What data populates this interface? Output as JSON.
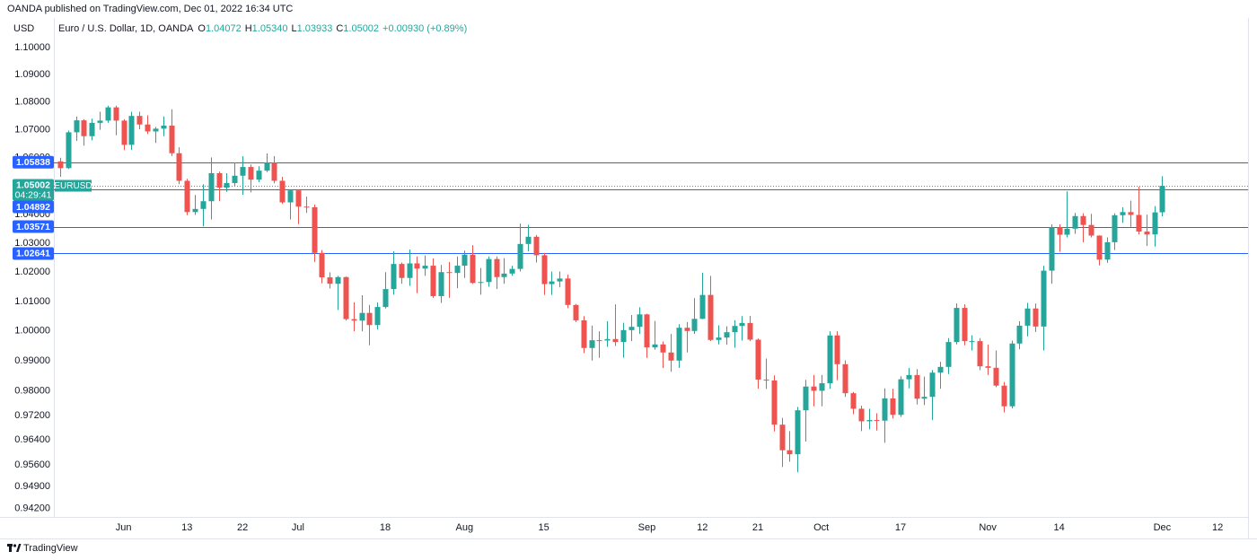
{
  "chart_data": {
    "type": "candlestick",
    "header": "OANDA published on TradingView.com, Dec 01, 2022 16:34 UTC",
    "currency": "USD",
    "legend": {
      "symbol": "Euro / U.S. Dollar, 1D, OANDA",
      "fields": [
        {
          "key": "O",
          "value": "1.04072"
        },
        {
          "key": "H",
          "value": "1.05340"
        },
        {
          "key": "L",
          "value": "1.03933"
        },
        {
          "key": "C",
          "value": "1.05002"
        }
      ],
      "change": "+0.00930 (+0.89%)"
    },
    "footer": "TradingView",
    "up_color": "#26a69a",
    "down_color": "#ef5350",
    "log_scale": true,
    "grid": false,
    "ylim": [
      0.9394,
      1.111
    ],
    "yticks": [
      {
        "value": 1.1,
        "label": "1.10000"
      },
      {
        "value": 1.09,
        "label": "1.09000"
      },
      {
        "value": 1.08,
        "label": "1.08000"
      },
      {
        "value": 1.07,
        "label": "1.07000"
      },
      {
        "value": 1.06,
        "label": "1.06000"
      },
      {
        "value": 1.04,
        "label": "1.04000"
      },
      {
        "value": 1.03,
        "label": "1.03000"
      },
      {
        "value": 1.02,
        "label": "1.02000"
      },
      {
        "value": 1.01,
        "label": "1.01000"
      },
      {
        "value": 1.0,
        "label": "1.00000"
      },
      {
        "value": 0.99,
        "label": "0.99000"
      },
      {
        "value": 0.98,
        "label": "0.98000"
      },
      {
        "value": 0.972,
        "label": "0.97200"
      },
      {
        "value": 0.964,
        "label": "0.96400"
      },
      {
        "value": 0.956,
        "label": "0.95600"
      },
      {
        "value": 0.949,
        "label": "0.94900"
      },
      {
        "value": 0.942,
        "label": "0.94200"
      }
    ],
    "xticks": [
      {
        "value": "2022-06-01",
        "label": "Jun"
      },
      {
        "value": "2022-06-13",
        "label": "13"
      },
      {
        "value": "2022-06-22",
        "label": "22"
      },
      {
        "value": "2022-07-01",
        "label": "Jul"
      },
      {
        "value": "2022-07-18",
        "label": "18"
      },
      {
        "value": "2022-08-01",
        "label": "Aug"
      },
      {
        "value": "2022-08-15",
        "label": "15"
      },
      {
        "value": "2022-09-01",
        "label": "Sep"
      },
      {
        "value": "2022-09-12",
        "label": "12"
      },
      {
        "value": "2022-09-21",
        "label": "21"
      },
      {
        "value": "2022-10-03",
        "label": "Oct"
      },
      {
        "value": "2022-10-17",
        "label": "17"
      },
      {
        "value": "2022-11-01",
        "label": "Nov"
      },
      {
        "value": "2022-11-14",
        "label": "14"
      },
      {
        "value": "2022-12-01",
        "label": "Dec"
      },
      {
        "value": "2022-12-12",
        "label": "12"
      }
    ],
    "hlines": [
      1.05838,
      1.04892,
      1.03571,
      1.02641
    ],
    "hline_color": "#2962ff",
    "last_price": 1.05002,
    "countdown": "04:29:41",
    "symbol_tag": "EURUSD",
    "categories": [
      "2022-05-20",
      "2022-05-23",
      "2022-05-24",
      "2022-05-25",
      "2022-05-26",
      "2022-05-27",
      "2022-05-30",
      "2022-05-31",
      "2022-06-01",
      "2022-06-02",
      "2022-06-03",
      "2022-06-06",
      "2022-06-07",
      "2022-06-08",
      "2022-06-09",
      "2022-06-10",
      "2022-06-13",
      "2022-06-14",
      "2022-06-15",
      "2022-06-16",
      "2022-06-17",
      "2022-06-20",
      "2022-06-21",
      "2022-06-22",
      "2022-06-23",
      "2022-06-24",
      "2022-06-27",
      "2022-06-28",
      "2022-06-29",
      "2022-06-30",
      "2022-07-01",
      "2022-07-04",
      "2022-07-05",
      "2022-07-06",
      "2022-07-07",
      "2022-07-08",
      "2022-07-11",
      "2022-07-12",
      "2022-07-13",
      "2022-07-14",
      "2022-07-15",
      "2022-07-18",
      "2022-07-19",
      "2022-07-20",
      "2022-07-21",
      "2022-07-22",
      "2022-07-25",
      "2022-07-26",
      "2022-07-27",
      "2022-07-28",
      "2022-07-29",
      "2022-08-01",
      "2022-08-02",
      "2022-08-03",
      "2022-08-04",
      "2022-08-05",
      "2022-08-08",
      "2022-08-09",
      "2022-08-10",
      "2022-08-11",
      "2022-08-12",
      "2022-08-15",
      "2022-08-16",
      "2022-08-17",
      "2022-08-18",
      "2022-08-19",
      "2022-08-22",
      "2022-08-23",
      "2022-08-24",
      "2022-08-25",
      "2022-08-26",
      "2022-08-29",
      "2022-08-30",
      "2022-08-31",
      "2022-09-01",
      "2022-09-02",
      "2022-09-05",
      "2022-09-06",
      "2022-09-07",
      "2022-09-08",
      "2022-09-09",
      "2022-09-12",
      "2022-09-13",
      "2022-09-14",
      "2022-09-15",
      "2022-09-16",
      "2022-09-19",
      "2022-09-20",
      "2022-09-21",
      "2022-09-22",
      "2022-09-23",
      "2022-09-26",
      "2022-09-27",
      "2022-09-28",
      "2022-09-29",
      "2022-09-30",
      "2022-10-03",
      "2022-10-04",
      "2022-10-05",
      "2022-10-06",
      "2022-10-07",
      "2022-10-10",
      "2022-10-11",
      "2022-10-12",
      "2022-10-13",
      "2022-10-14",
      "2022-10-17",
      "2022-10-18",
      "2022-10-19",
      "2022-10-20",
      "2022-10-21",
      "2022-10-24",
      "2022-10-25",
      "2022-10-26",
      "2022-10-27",
      "2022-10-28",
      "2022-10-31",
      "2022-11-01",
      "2022-11-02",
      "2022-11-03",
      "2022-11-04",
      "2022-11-07",
      "2022-11-08",
      "2022-11-09",
      "2022-11-10",
      "2022-11-11",
      "2022-11-14",
      "2022-11-15",
      "2022-11-16",
      "2022-11-17",
      "2022-11-18",
      "2022-11-21",
      "2022-11-22",
      "2022-11-23",
      "2022-11-24",
      "2022-11-25",
      "2022-11-28",
      "2022-11-29",
      "2022-11-30",
      "2022-12-01"
    ],
    "open": [
      1.0587,
      1.0563,
      1.0691,
      1.0734,
      1.0677,
      1.0725,
      1.0733,
      1.0781,
      1.0733,
      1.0646,
      1.075,
      1.0719,
      1.0694,
      1.0704,
      1.0715,
      1.0616,
      1.0518,
      1.0408,
      1.0419,
      1.0446,
      1.0545,
      1.0494,
      1.051,
      1.0536,
      1.0567,
      1.0522,
      1.0554,
      1.0583,
      1.0518,
      1.0442,
      1.0484,
      1.0427,
      1.0425,
      1.0266,
      1.0182,
      1.016,
      1.0183,
      1.004,
      1.0035,
      1.0061,
      1.002,
      1.0081,
      1.0142,
      1.0228,
      1.018,
      1.023,
      1.0212,
      1.0222,
      1.0118,
      1.02,
      1.0197,
      1.0222,
      1.026,
      1.0163,
      1.0166,
      1.0245,
      1.0183,
      1.0195,
      1.0211,
      1.0297,
      1.0322,
      1.0258,
      1.0159,
      1.0168,
      1.0178,
      1.0088,
      1.0036,
      0.9943,
      0.9969,
      0.9968,
      0.9973,
      0.9963,
      1.0003,
      1.0014,
      1.0056,
      0.9945,
      0.9955,
      0.9928,
      0.9901,
      1.0011,
      1.0,
      1.0041,
      1.0122,
      0.997,
      0.9978,
      0.9996,
      1.0017,
      1.0027,
      0.9971,
      0.9838,
      0.9835,
      0.969,
      0.9607,
      0.9594,
      0.9737,
      0.9815,
      0.9801,
      0.9826,
      0.9985,
      0.9889,
      0.9793,
      0.9742,
      0.9701,
      0.9705,
      0.9703,
      0.9776,
      0.9722,
      0.9839,
      0.9853,
      0.9775,
      0.9781,
      0.9861,
      0.988,
      0.9963,
      1.0078,
      0.9966,
      0.9966,
      0.9882,
      0.9877,
      0.9818,
      0.975,
      0.9958,
      1.0018,
      1.0076,
      1.0015,
      1.0205,
      1.0355,
      1.0329,
      1.035,
      1.0394,
      1.0363,
      1.0326,
      1.0243,
      1.0303,
      1.0397,
      1.0408,
      1.0398,
      1.034,
      1.033,
      1.04072
    ],
    "high": [
      1.06,
      1.0697,
      1.0748,
      1.0738,
      1.074,
      1.0765,
      1.0787,
      1.0787,
      1.0738,
      1.0765,
      1.0765,
      1.0752,
      1.071,
      1.0748,
      1.0774,
      1.0637,
      1.0525,
      1.0468,
      1.0506,
      1.0601,
      1.0551,
      1.0545,
      1.0583,
      1.0605,
      1.0576,
      1.057,
      1.0615,
      1.0606,
      1.0532,
      1.0486,
      1.0488,
      1.0462,
      1.0435,
      1.0276,
      1.0199,
      1.0187,
      1.0185,
      1.0097,
      1.0121,
      1.0088,
      1.0096,
      1.02,
      1.0272,
      1.0233,
      1.0278,
      1.0254,
      1.0257,
      1.0247,
      1.0225,
      1.0235,
      1.0254,
      1.0274,
      1.0293,
      1.0214,
      1.0254,
      1.0254,
      1.0248,
      1.0222,
      1.0368,
      1.0364,
      1.0328,
      1.0266,
      1.0202,
      1.0202,
      1.0191,
      1.0091,
      1.005,
      1.0018,
      0.9999,
      1.0033,
      1.009,
      1.0028,
      1.0054,
      1.008,
      1.0058,
      1.0034,
      0.9965,
      0.999,
      1.0023,
      1.003,
      1.0111,
      1.0198,
      1.0187,
      1.0019,
      1.0016,
      1.0036,
      1.005,
      1.0051,
      0.9975,
      0.9908,
      0.9852,
      0.9712,
      0.9669,
      0.9748,
      0.9837,
      0.9853,
      0.9853,
      0.9999,
      0.9999,
      0.9902,
      0.9797,
      0.9752,
      0.9742,
      0.9727,
      0.9809,
      0.9808,
      0.9849,
      0.9876,
      0.9873,
      0.9848,
      0.987,
      0.9897,
      0.9976,
      1.0093,
      1.009,
      0.9986,
      0.9976,
      0.9954,
      0.9935,
      0.983,
      0.9968,
      1.0033,
      1.0095,
      1.0093,
      1.0222,
      1.0365,
      1.0365,
      1.0481,
      1.0405,
      1.0404,
      1.0402,
      1.0327,
      1.032,
      1.0404,
      1.0425,
      1.0448,
      1.0497,
      1.0399,
      1.0429,
      1.0534
    ],
    "low": [
      1.0532,
      1.056,
      1.066,
      1.0643,
      1.0662,
      1.07,
      1.0725,
      1.068,
      1.0627,
      1.0628,
      1.0702,
      1.0685,
      1.0653,
      1.0677,
      1.0606,
      1.0506,
      1.0397,
      1.0398,
      1.0358,
      1.0382,
      1.0446,
      1.0479,
      1.05,
      1.0469,
      1.0477,
      1.0513,
      1.0549,
      1.0509,
      1.0437,
      1.0382,
      1.0366,
      1.0405,
      1.0235,
      1.0162,
      1.0144,
      1.0071,
      1.0035,
      0.9999,
      0.9999,
      0.9952,
      1.0005,
      1.0076,
      1.0123,
      1.016,
      1.0153,
      1.0128,
      1.0187,
      1.0112,
      1.0095,
      1.0112,
      1.0145,
      1.018,
      1.016,
      1.0123,
      1.015,
      1.0142,
      1.016,
      1.0187,
      1.0202,
      1.0272,
      1.0233,
      1.0122,
      1.0122,
      1.0148,
      1.0077,
      1.003,
      0.9926,
      0.9901,
      0.991,
      0.9947,
      0.995,
      0.9911,
      0.9966,
      0.999,
      0.991,
      0.9937,
      0.9876,
      0.9864,
      0.9877,
      0.9928,
      0.999,
      1.004,
      0.9966,
      0.9955,
      0.9954,
      0.9944,
      0.9968,
      0.9966,
      0.9808,
      0.9807,
      0.9668,
      0.9553,
      0.957,
      0.9536,
      0.9635,
      0.975,
      0.975,
      0.9808,
      0.9836,
      0.9781,
      0.9724,
      0.9669,
      0.9675,
      0.9671,
      0.9631,
      0.971,
      0.9715,
      0.9809,
      0.9756,
      0.9754,
      0.9705,
      0.9808,
      0.9856,
      0.9955,
      0.9952,
      0.9935,
      0.9869,
      0.9853,
      0.9813,
      0.973,
      0.9743,
      0.9939,
      0.9982,
      0.9997,
      0.9935,
      1.016,
      1.027,
      1.032,
      1.0332,
      1.0303,
      1.032,
      1.0223,
      1.0232,
      1.0276,
      1.037,
      1.0356,
      1.033,
      1.029,
      1.0288,
      1.03933
    ],
    "close": [
      1.0563,
      1.0691,
      1.0734,
      1.0677,
      1.0725,
      1.0733,
      1.0781,
      1.0733,
      1.0646,
      1.075,
      1.0719,
      1.0694,
      1.0704,
      1.0715,
      1.0616,
      1.0518,
      1.0408,
      1.0419,
      1.0446,
      1.0545,
      1.0494,
      1.051,
      1.0536,
      1.0567,
      1.0522,
      1.0554,
      1.0583,
      1.0518,
      1.0442,
      1.0484,
      1.0427,
      1.0425,
      1.0266,
      1.0182,
      1.016,
      1.0183,
      1.004,
      1.0035,
      1.0061,
      1.002,
      1.0081,
      1.0142,
      1.0228,
      1.018,
      1.023,
      1.0212,
      1.0222,
      1.0118,
      1.02,
      1.0197,
      1.0222,
      1.026,
      1.0163,
      1.0166,
      1.0245,
      1.0183,
      1.0195,
      1.0211,
      1.0297,
      1.0322,
      1.0258,
      1.0159,
      1.0168,
      1.0178,
      1.0088,
      1.0036,
      0.9943,
      0.9969,
      0.9968,
      0.9973,
      0.9963,
      1.0003,
      1.0014,
      1.0056,
      0.9945,
      0.9955,
      0.9928,
      0.9901,
      1.0011,
      1.0,
      1.0041,
      1.0122,
      0.997,
      0.9978,
      0.9996,
      1.0017,
      1.0027,
      0.9971,
      0.9838,
      0.9835,
      0.969,
      0.9607,
      0.9594,
      0.9737,
      0.9815,
      0.9801,
      0.9826,
      0.9985,
      0.9889,
      0.9793,
      0.9742,
      0.9701,
      0.9705,
      0.9703,
      0.9776,
      0.9722,
      0.9839,
      0.9853,
      0.9775,
      0.9781,
      0.9861,
      0.988,
      0.9963,
      1.0078,
      0.9966,
      0.9966,
      0.9882,
      0.9877,
      0.9818,
      0.975,
      0.9958,
      1.0018,
      1.0076,
      1.0015,
      1.0205,
      1.0355,
      1.0329,
      1.035,
      1.0394,
      1.0363,
      1.0326,
      1.0243,
      1.0303,
      1.0397,
      1.0408,
      1.0398,
      1.034,
      1.033,
      1.0407,
      1.05002
    ]
  }
}
